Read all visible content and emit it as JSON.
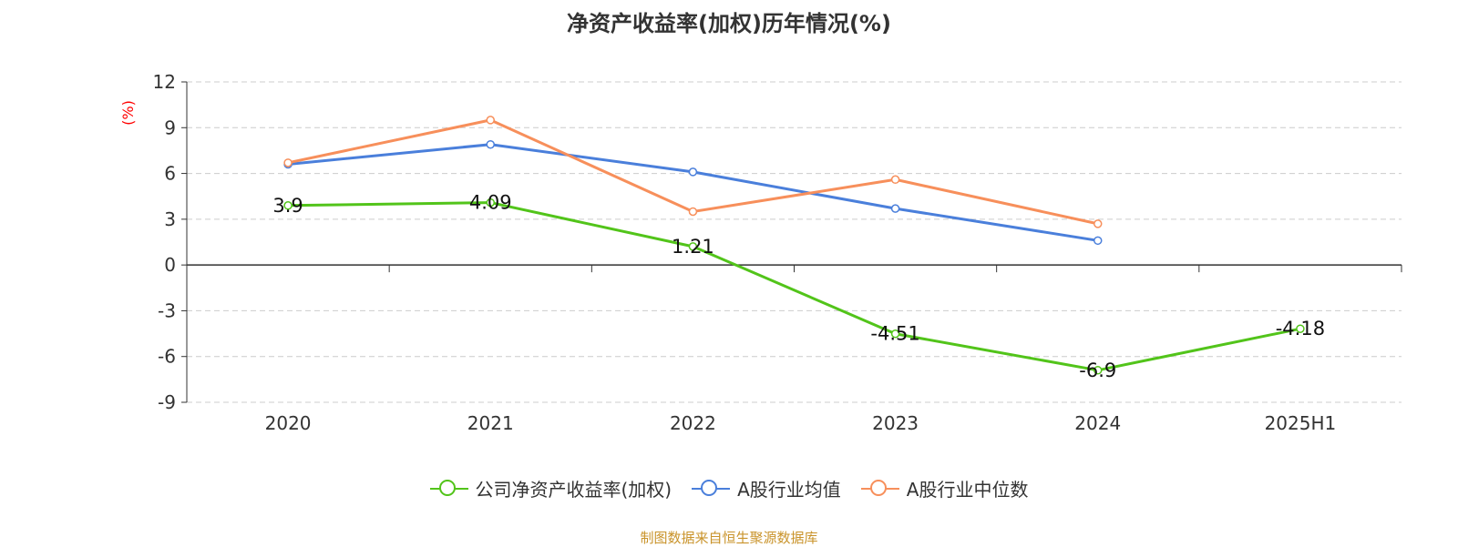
{
  "chart_data": {
    "type": "line",
    "title": "净资产收益率(加权)历年情况(%)",
    "ylabel": "(%)",
    "categories": [
      "2020",
      "2021",
      "2022",
      "2023",
      "2024",
      "2025H1"
    ],
    "y_ticks": [
      "12",
      "9",
      "6",
      "3",
      "0",
      "-3",
      "-6",
      "-9"
    ],
    "ylim": [
      -9,
      12
    ],
    "grid": true,
    "legend_position": "bottom",
    "series": [
      {
        "name": "公司净资产收益率(加权)",
        "color": "#52c41a",
        "values": [
          3.9,
          4.09,
          1.21,
          -4.51,
          -6.9,
          -4.18
        ],
        "labels": [
          "3.9",
          "4.09",
          "1.21",
          "-4.51",
          "-6.9",
          "-4.18"
        ]
      },
      {
        "name": "A股行业均值",
        "color": "#4a7fdb",
        "values": [
          6.6,
          7.9,
          6.1,
          3.7,
          1.6,
          null
        ]
      },
      {
        "name": "A股行业中位数",
        "color": "#f78f5b",
        "values": [
          6.7,
          9.5,
          3.5,
          5.6,
          2.7,
          null
        ]
      }
    ]
  },
  "source_note": "制图数据来自恒生聚源数据库",
  "colors": {
    "axis": "#333333",
    "grid": "#cccccc",
    "ylabel": "#ff0000"
  }
}
